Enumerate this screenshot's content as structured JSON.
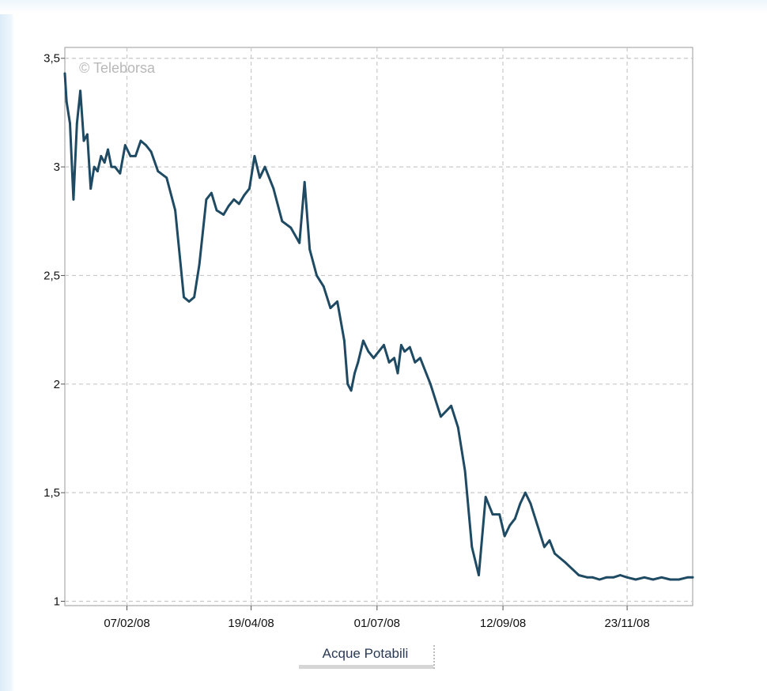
{
  "chart_data": {
    "type": "line",
    "title": "",
    "xlabel": "",
    "ylabel": "",
    "watermark": "© Teleborsa",
    "legend": {
      "label": "Acque Potabili",
      "placement": "bottom-center"
    },
    "x_range": [
      "2008-01-02",
      "2008-12-31"
    ],
    "ylim": [
      0.98,
      3.55
    ],
    "y_ticks": [
      {
        "value": 1,
        "label": "1"
      },
      {
        "value": 1.5,
        "label": "1,5"
      },
      {
        "value": 2,
        "label": "2"
      },
      {
        "value": 2.5,
        "label": "2,5"
      },
      {
        "value": 3,
        "label": "3"
      },
      {
        "value": 3.5,
        "label": "3,5"
      }
    ],
    "x_ticks": [
      {
        "date": "2008-02-07",
        "label": "07/02/08"
      },
      {
        "date": "2008-04-19",
        "label": "19/04/08"
      },
      {
        "date": "2008-07-01",
        "label": "01/07/08"
      },
      {
        "date": "2008-09-12",
        "label": "12/09/08"
      },
      {
        "date": "2008-11-23",
        "label": "23/11/08"
      }
    ],
    "grid": true,
    "colors": {
      "series": "#1f4a63",
      "grid": "#c8c8c8",
      "frame": "#9a9a9a"
    },
    "series": [
      {
        "name": "Acque Potabili",
        "x": [
          "2008-01-02",
          "2008-01-03",
          "2008-01-05",
          "2008-01-07",
          "2008-01-09",
          "2008-01-11",
          "2008-01-13",
          "2008-01-15",
          "2008-01-17",
          "2008-01-19",
          "2008-01-21",
          "2008-01-23",
          "2008-01-25",
          "2008-01-27",
          "2008-01-29",
          "2008-01-31",
          "2008-02-03",
          "2008-02-06",
          "2008-02-09",
          "2008-02-12",
          "2008-02-15",
          "2008-02-18",
          "2008-02-21",
          "2008-02-25",
          "2008-03-01",
          "2008-03-06",
          "2008-03-11",
          "2008-03-14",
          "2008-03-17",
          "2008-03-20",
          "2008-03-24",
          "2008-03-27",
          "2008-03-30",
          "2008-04-03",
          "2008-04-06",
          "2008-04-09",
          "2008-04-12",
          "2008-04-15",
          "2008-04-18",
          "2008-04-21",
          "2008-04-24",
          "2008-04-27",
          "2008-05-02",
          "2008-05-07",
          "2008-05-12",
          "2008-05-17",
          "2008-05-20",
          "2008-05-23",
          "2008-05-27",
          "2008-05-31",
          "2008-06-04",
          "2008-06-08",
          "2008-06-12",
          "2008-06-14",
          "2008-06-16",
          "2008-06-18",
          "2008-06-20",
          "2008-06-23",
          "2008-06-26",
          "2008-06-29",
          "2008-07-02",
          "2008-07-05",
          "2008-07-08",
          "2008-07-11",
          "2008-07-13",
          "2008-07-15",
          "2008-07-17",
          "2008-07-20",
          "2008-07-23",
          "2008-07-26",
          "2008-08-01",
          "2008-08-07",
          "2008-08-13",
          "2008-08-17",
          "2008-08-19",
          "2008-08-21",
          "2008-08-25",
          "2008-08-29",
          "2008-09-02",
          "2008-09-06",
          "2008-09-10",
          "2008-09-13",
          "2008-09-16",
          "2008-09-19",
          "2008-09-22",
          "2008-09-25",
          "2008-09-28",
          "2008-09-30",
          "2008-10-02",
          "2008-10-04",
          "2008-10-06",
          "2008-10-09",
          "2008-10-12",
          "2008-10-15",
          "2008-10-18",
          "2008-10-22",
          "2008-10-26",
          "2008-10-31",
          "2008-11-03",
          "2008-11-07",
          "2008-11-11",
          "2008-11-15",
          "2008-11-19",
          "2008-11-23",
          "2008-11-28",
          "2008-12-03",
          "2008-12-08",
          "2008-12-13",
          "2008-12-18",
          "2008-12-23",
          "2008-12-28",
          "2008-12-31"
        ],
        "values": [
          3.43,
          3.3,
          3.2,
          2.85,
          3.2,
          3.35,
          3.12,
          3.15,
          2.9,
          3.0,
          2.98,
          3.05,
          3.02,
          3.08,
          3.0,
          3.0,
          2.97,
          3.1,
          3.05,
          3.05,
          3.12,
          3.1,
          3.07,
          2.98,
          2.95,
          2.8,
          2.4,
          2.38,
          2.4,
          2.55,
          2.85,
          2.88,
          2.8,
          2.78,
          2.82,
          2.85,
          2.83,
          2.87,
          2.9,
          3.05,
          2.95,
          3.0,
          2.9,
          2.75,
          2.72,
          2.65,
          2.93,
          2.62,
          2.5,
          2.45,
          2.35,
          2.38,
          2.2,
          2.0,
          1.97,
          2.05,
          2.1,
          2.2,
          2.15,
          2.12,
          2.15,
          2.18,
          2.1,
          2.12,
          2.05,
          2.18,
          2.15,
          2.17,
          2.1,
          2.12,
          2.0,
          1.85,
          1.9,
          1.8,
          1.7,
          1.6,
          1.25,
          1.12,
          1.48,
          1.4,
          1.4,
          1.3,
          1.35,
          1.38,
          1.45,
          1.5,
          1.45,
          1.4,
          1.35,
          1.3,
          1.25,
          1.28,
          1.22,
          1.2,
          1.18,
          1.15,
          1.12,
          1.11,
          1.11,
          1.1,
          1.11,
          1.11,
          1.12,
          1.11,
          1.1,
          1.11,
          1.1,
          1.11,
          1.1,
          1.1,
          1.11,
          1.11
        ]
      }
    ]
  }
}
